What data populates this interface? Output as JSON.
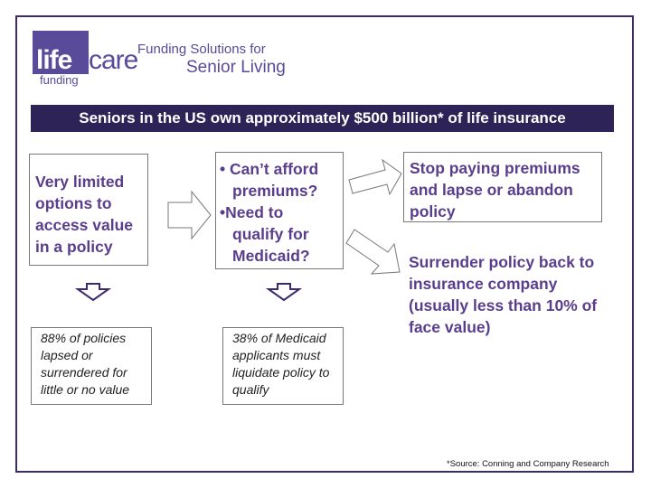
{
  "logo": {
    "life": "life",
    "care": "care",
    "funding": "funding"
  },
  "tagline": {
    "line1": "Funding Solutions for",
    "line2": "Senior Living"
  },
  "banner": "Seniors in the US own approximately $500 billion* of life insurance",
  "boxes": {
    "limited": "Very limited options to access value in a policy",
    "cant_afford": "• Can’t afford premiums?",
    "need_medicaid": "•Need to qualify for Medicaid?",
    "stop_paying": "Stop paying premiums and lapse or abandon policy",
    "surrender": "Surrender policy back to insurance company (usually less than 10% of face value)"
  },
  "stats": {
    "lapsed": "88% of policies lapsed or surrendered for little or no value",
    "medicaid": "38% of Medicaid applicants must liquidate policy to qualify"
  },
  "source": "*Source: Conning and Company Research",
  "colors": {
    "banner_bg": "#2d2356",
    "accent": "#5a3e8c",
    "logo": "#5a4a9a"
  }
}
